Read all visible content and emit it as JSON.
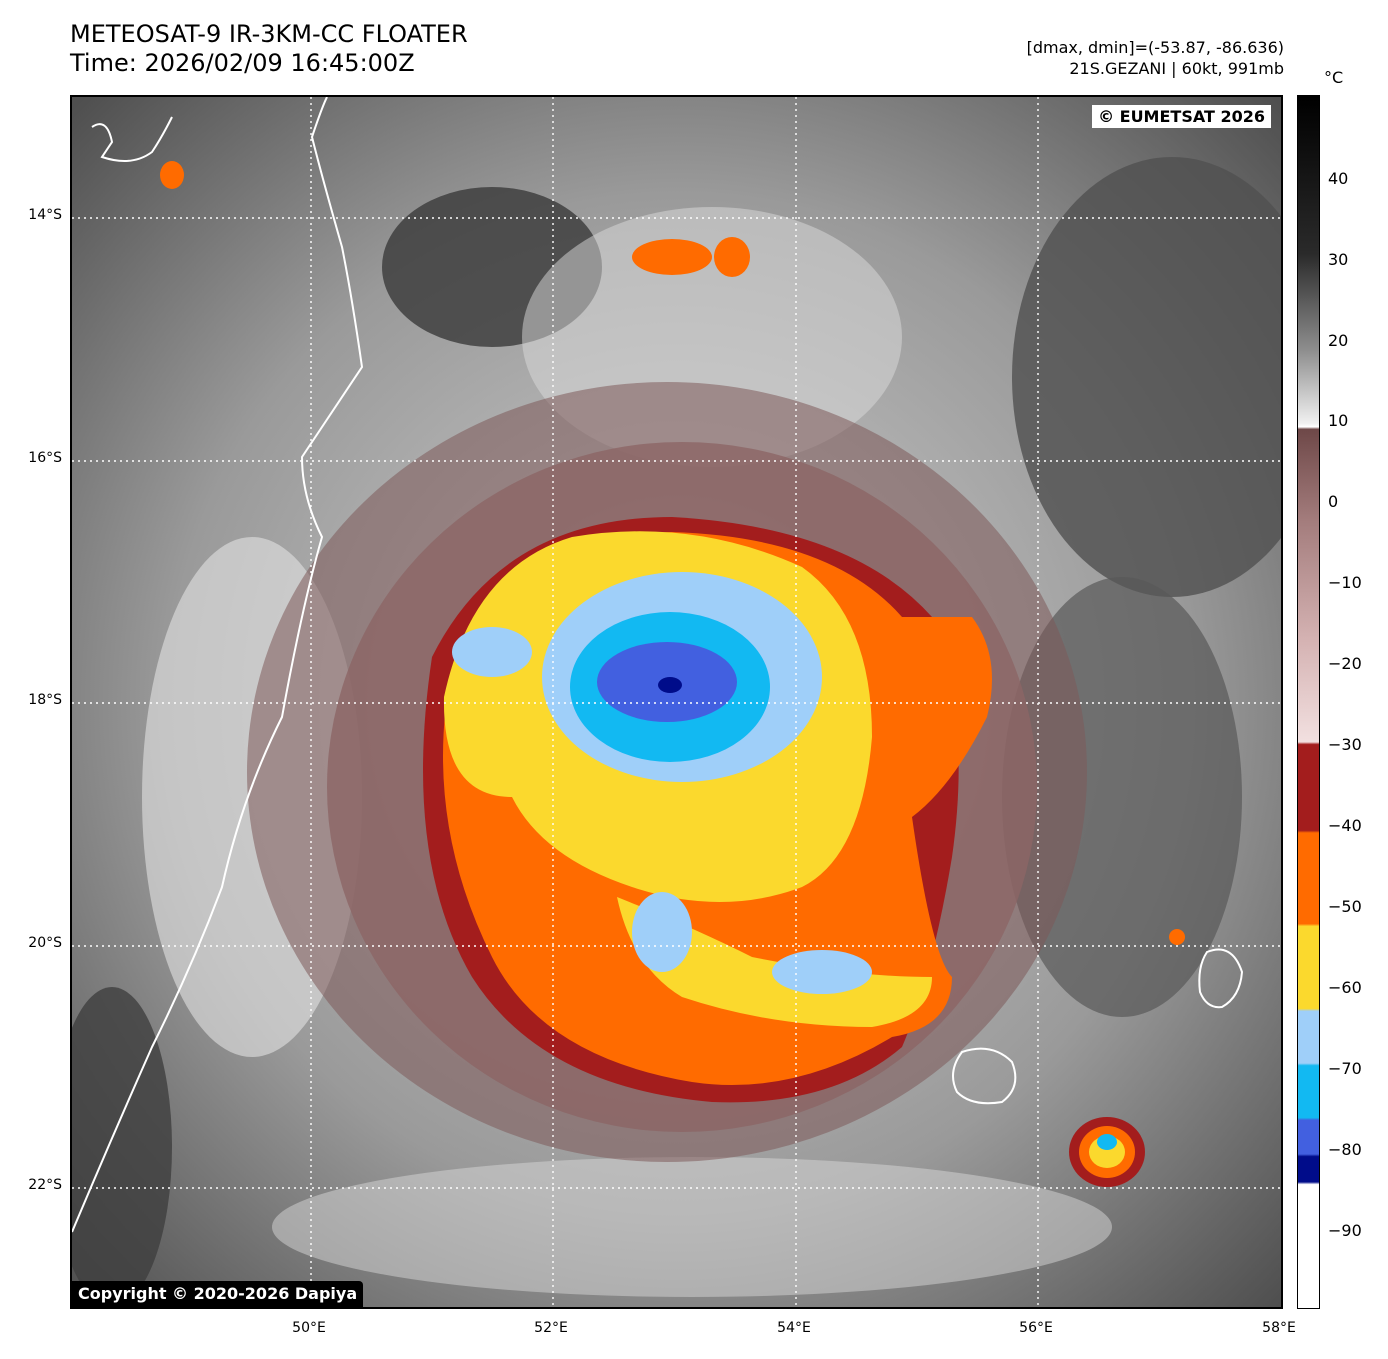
{
  "header": {
    "title_line1": "METEOSAT-9 IR-3KM-CC FLOATER",
    "title_line2": "Time: 2026/02/09 16:45:00Z",
    "range_text": "[dmax, dmin]=(-53.87, -86.636)",
    "storm_text": "21S.GEZANI | 60kt, 991mb"
  },
  "map": {
    "credit_top": "© EUMETSAT 2026",
    "credit_bottom": "Copyright © 2020-2026 Dapiya",
    "lat_labels": [
      "14°S",
      "16°S",
      "18°S",
      "20°S",
      "22°S"
    ],
    "lon_labels": [
      "50°E",
      "52°E",
      "54°E",
      "56°E",
      "58°E"
    ]
  },
  "colorbar": {
    "unit": "°C",
    "ticks": [
      "40",
      "30",
      "20",
      "10",
      "0",
      "−10",
      "−20",
      "−30",
      "−40",
      "−50",
      "−60",
      "−70",
      "−80",
      "−90"
    ],
    "colors": {
      "red": "#a31d1d",
      "orange": "#ff6b00",
      "yellow": "#fbd92d",
      "light_blue": "#9fcff9",
      "cyan": "#12b9f2",
      "blue": "#4260e0",
      "navy": "#000c8a"
    }
  }
}
